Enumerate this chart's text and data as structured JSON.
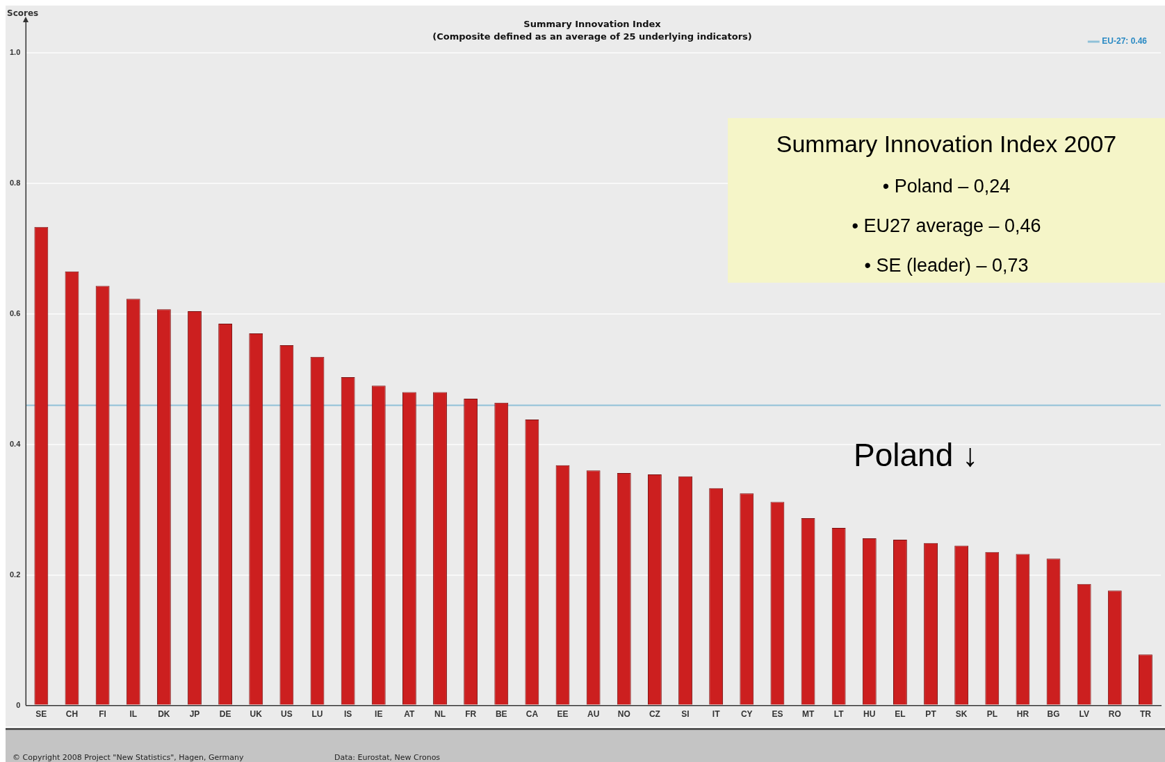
{
  "chart_data": {
    "type": "bar",
    "title": "Summary Innovation Index",
    "subtitle": "(Composite defined as an average of 25 underlying indicators)",
    "ylabel": "Scores",
    "categories": [
      "SE",
      "CH",
      "FI",
      "IL",
      "DK",
      "JP",
      "DE",
      "UK",
      "US",
      "LU",
      "IS",
      "IE",
      "AT",
      "NL",
      "FR",
      "BE",
      "CA",
      "EE",
      "AU",
      "NO",
      "CZ",
      "SI",
      "IT",
      "CY",
      "ES",
      "MT",
      "LT",
      "HU",
      "EL",
      "PT",
      "SK",
      "PL",
      "HR",
      "BG",
      "LV",
      "RO",
      "TR"
    ],
    "values": [
      0.733,
      0.665,
      0.643,
      0.623,
      0.607,
      0.604,
      0.585,
      0.57,
      0.552,
      0.534,
      0.503,
      0.49,
      0.48,
      0.48,
      0.47,
      0.464,
      0.438,
      0.368,
      0.36,
      0.356,
      0.354,
      0.351,
      0.333,
      0.325,
      0.312,
      0.287,
      0.272,
      0.256,
      0.254,
      0.249,
      0.245,
      0.235,
      0.232,
      0.225,
      0.186,
      0.176,
      0.078
    ],
    "color": "#cc1f1f",
    "ylim": [
      0,
      1
    ],
    "yticks": [
      {
        "value": 0,
        "label": "0"
      },
      0.2,
      0.4,
      0.6,
      0.8,
      {
        "value": 1,
        "label": "1.0"
      }
    ],
    "grid": "y",
    "legend": "top right",
    "ref_lines": [
      {
        "axis": "y",
        "value": 0.46,
        "label": "EU-27: 0.46",
        "color": "#8fc0d8"
      }
    ],
    "annotations": [
      "Summary Innovation Index 2007",
      "• Poland – 0,24",
      "• EU27 average – 0,46",
      "• SE (leader) – 0,73",
      "Poland ↓",
      "© Copyright 2008 Project \"New Statistics\", Hagen, Germany",
      "Data: Eurostat, New Cronos"
    ]
  }
}
